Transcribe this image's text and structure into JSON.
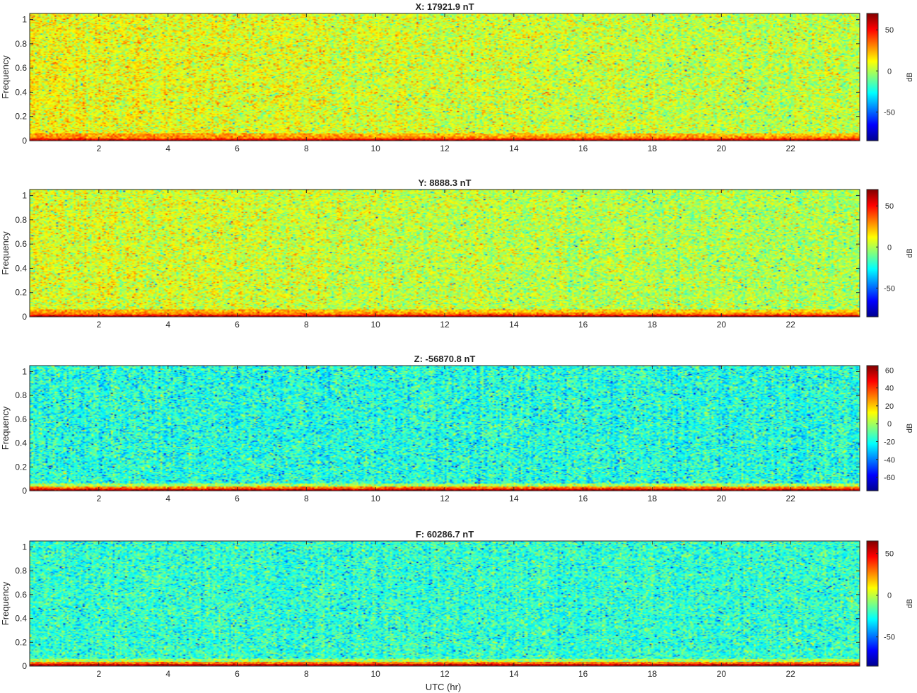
{
  "figure": {
    "xlabel": "UTC (hr)"
  },
  "chart_data": [
    {
      "type": "heatmap",
      "title": "X: 17921.9 nT",
      "ylabel": "Frequency",
      "xlim": [
        0,
        24
      ],
      "ylim": [
        0,
        1.05
      ],
      "xticks": [
        2,
        4,
        6,
        8,
        10,
        12,
        14,
        16,
        18,
        20,
        22
      ],
      "yticks": [
        0,
        0.2,
        0.4,
        0.6,
        0.8,
        1
      ],
      "colorbar": {
        "label": "dB",
        "range": [
          -85,
          70
        ],
        "ticks": [
          -50,
          0,
          50
        ]
      },
      "base_level_db": 5,
      "seed": 11
    },
    {
      "type": "heatmap",
      "title": "Y: 8888.3 nT",
      "ylabel": "Frequency",
      "xlim": [
        0,
        24
      ],
      "ylim": [
        0,
        1.05
      ],
      "xticks": [
        2,
        4,
        6,
        8,
        10,
        12,
        14,
        16,
        18,
        20,
        22
      ],
      "yticks": [
        0,
        0.2,
        0.4,
        0.6,
        0.8,
        1
      ],
      "colorbar": {
        "label": "dB",
        "range": [
          -85,
          70
        ],
        "ticks": [
          -50,
          0,
          50
        ]
      },
      "base_level_db": 2,
      "seed": 23
    },
    {
      "type": "heatmap",
      "title": "Z: -56870.8 nT",
      "ylabel": "Frequency",
      "xlim": [
        0,
        24
      ],
      "ylim": [
        0,
        1.05
      ],
      "xticks": [
        2,
        4,
        6,
        8,
        10,
        12,
        14,
        16,
        18,
        20,
        22
      ],
      "yticks": [
        0,
        0.2,
        0.4,
        0.6,
        0.8,
        1
      ],
      "colorbar": {
        "label": "dB",
        "range": [
          -75,
          65
        ],
        "ticks": [
          -60,
          -40,
          -20,
          0,
          20,
          40,
          60
        ]
      },
      "base_level_db": -18,
      "seed": 37
    },
    {
      "type": "heatmap",
      "title": "F: 60286.7 nT",
      "ylabel": "Frequency",
      "xlim": [
        0,
        24
      ],
      "ylim": [
        0,
        1.05
      ],
      "xticks": [
        2,
        4,
        6,
        8,
        10,
        12,
        14,
        16,
        18,
        20,
        22
      ],
      "yticks": [
        0,
        0.2,
        0.4,
        0.6,
        0.8,
        1
      ],
      "colorbar": {
        "label": "dB",
        "range": [
          -85,
          65
        ],
        "ticks": [
          -50,
          0,
          50
        ]
      },
      "base_level_db": -22,
      "seed": 51
    }
  ]
}
